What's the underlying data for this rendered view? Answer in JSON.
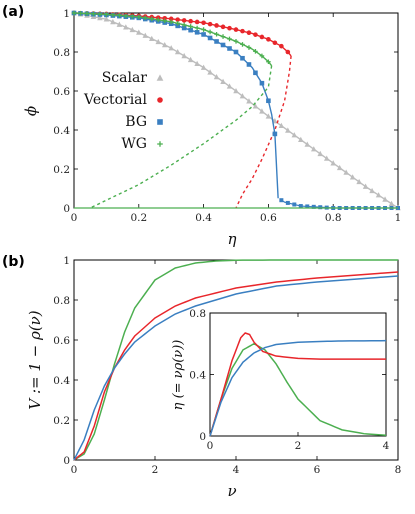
{
  "colors": {
    "scalar": "#bdbdbd",
    "vectorial": "#e8262b",
    "bg": "#3a7fc1",
    "wg": "#4caf50"
  },
  "chart_data": [
    {
      "panel": "(a)",
      "type": "line",
      "xlabel": "η",
      "ylabel": "ϕ",
      "xlim": [
        0,
        1
      ],
      "ylim": [
        0,
        1
      ],
      "xticks": [
        "0",
        "0.2",
        "0.4",
        "0.6",
        "0.8",
        "1"
      ],
      "yticks": [
        "0",
        "0.2",
        "0.4",
        "0.6",
        "0.8",
        "1"
      ],
      "legend_position": "center-left",
      "series": [
        {
          "name": "Scalar",
          "marker": "triangle",
          "x": [
            0.0,
            0.1,
            0.2,
            0.3,
            0.4,
            0.5,
            0.6,
            0.7,
            0.8,
            0.9,
            1.0
          ],
          "y": [
            1.0,
            0.968,
            0.9,
            0.82,
            0.72,
            0.6,
            0.47,
            0.35,
            0.23,
            0.11,
            0.0
          ]
        },
        {
          "name": "Vectorial",
          "marker": "circle",
          "x": [
            0.0,
            0.1,
            0.2,
            0.3,
            0.4,
            0.5,
            0.55,
            0.6,
            0.64,
            0.66,
            0.67
          ],
          "y": [
            1.0,
            0.995,
            0.985,
            0.97,
            0.95,
            0.915,
            0.895,
            0.865,
            0.83,
            0.8,
            0.78
          ],
          "unstable_x": [
            0.67,
            0.665,
            0.65,
            0.62,
            0.58,
            0.55,
            0.52,
            0.5
          ],
          "unstable_y": [
            0.78,
            0.7,
            0.55,
            0.4,
            0.25,
            0.15,
            0.07,
            0.0
          ]
        },
        {
          "name": "BG",
          "marker": "square",
          "x": [
            0.0,
            0.1,
            0.2,
            0.3,
            0.4,
            0.5,
            0.55,
            0.58,
            0.6,
            0.61,
            0.62,
            0.63
          ],
          "y": [
            1.0,
            0.99,
            0.975,
            0.945,
            0.89,
            0.8,
            0.72,
            0.64,
            0.55,
            0.48,
            0.38,
            0.05
          ],
          "x_zero": [
            0.64,
            0.65,
            0.7,
            0.8,
            0.9,
            1.0
          ],
          "y_zero": [
            0.04,
            0.03,
            0.01,
            0.0,
            0.0,
            0.0
          ]
        },
        {
          "name": "WG",
          "marker": "plus",
          "x": [
            0.0,
            0.1,
            0.2,
            0.3,
            0.4,
            0.5,
            0.55,
            0.58,
            0.6,
            0.61
          ],
          "y": [
            1.0,
            0.993,
            0.98,
            0.955,
            0.915,
            0.855,
            0.815,
            0.78,
            0.75,
            0.73
          ],
          "unstable_x": [
            0.61,
            0.6,
            0.55,
            0.5,
            0.4,
            0.3,
            0.2,
            0.1,
            0.05
          ],
          "unstable_y": [
            0.73,
            0.62,
            0.52,
            0.45,
            0.33,
            0.22,
            0.12,
            0.04,
            0.0
          ],
          "x_zero": [
            0.0,
            0.2,
            0.4,
            0.6,
            0.8,
            1.0
          ],
          "y_zero": [
            0.0,
            0.0,
            0.0,
            0.0,
            0.0,
            0.0
          ]
        }
      ]
    },
    {
      "panel": "(b)",
      "type": "line",
      "xlabel": "ν",
      "ylabel": "V := 1 − ρ(ν)",
      "xlim": [
        0,
        8
      ],
      "ylim": [
        0,
        1
      ],
      "xticks": [
        "0",
        "2",
        "4",
        "6",
        "8"
      ],
      "yticks": [
        "0",
        "0.2",
        "0.4",
        "0.6",
        "0.8",
        "1"
      ],
      "series": [
        {
          "color": "wg",
          "x": [
            0,
            0.25,
            0.5,
            0.75,
            1.0,
            1.25,
            1.5,
            2.0,
            2.5,
            3.0,
            3.5,
            4.0,
            5.0,
            8.0
          ],
          "y": [
            0,
            0.03,
            0.13,
            0.3,
            0.48,
            0.64,
            0.76,
            0.9,
            0.96,
            0.985,
            0.995,
            0.999,
            1.0,
            1.0
          ]
        },
        {
          "color": "vectorial",
          "x": [
            0,
            0.25,
            0.5,
            0.75,
            1.0,
            1.25,
            1.5,
            2.0,
            2.5,
            3.0,
            4.0,
            5.0,
            6.0,
            7.0,
            8.0
          ],
          "y": [
            0,
            0.04,
            0.17,
            0.34,
            0.46,
            0.55,
            0.62,
            0.71,
            0.77,
            0.81,
            0.86,
            0.89,
            0.91,
            0.925,
            0.94
          ]
        },
        {
          "color": "bg",
          "x": [
            0,
            0.25,
            0.5,
            0.75,
            1.0,
            1.25,
            1.5,
            2.0,
            2.5,
            3.0,
            4.0,
            5.0,
            6.0,
            7.0,
            8.0
          ],
          "y": [
            0,
            0.1,
            0.25,
            0.37,
            0.46,
            0.53,
            0.59,
            0.67,
            0.73,
            0.77,
            0.83,
            0.87,
            0.89,
            0.905,
            0.92
          ]
        }
      ]
    },
    {
      "panel": "inset",
      "type": "line",
      "xlabel": "",
      "ylabel": "η (= νρ(ν))",
      "xlim": [
        0,
        4
      ],
      "ylim": [
        0,
        0.8
      ],
      "xticks": [
        "0",
        "2",
        "4"
      ],
      "yticks": [
        "0",
        "0.4",
        "0.8"
      ],
      "series": [
        {
          "color": "wg",
          "x": [
            0,
            0.25,
            0.5,
            0.75,
            1.0,
            1.25,
            1.5,
            1.75,
            2.0,
            2.5,
            3.0,
            3.5,
            4.0
          ],
          "y": [
            0,
            0.24,
            0.44,
            0.56,
            0.6,
            0.56,
            0.47,
            0.35,
            0.24,
            0.1,
            0.04,
            0.015,
            0.005
          ]
        },
        {
          "color": "vectorial",
          "x": [
            0,
            0.25,
            0.5,
            0.7,
            0.8,
            0.9,
            1.0,
            1.2,
            1.5,
            2.0,
            2.5,
            3.0,
            4.0
          ],
          "y": [
            0,
            0.24,
            0.49,
            0.64,
            0.67,
            0.66,
            0.61,
            0.55,
            0.52,
            0.505,
            0.5,
            0.5,
            0.5
          ]
        },
        {
          "color": "bg",
          "x": [
            0,
            0.25,
            0.5,
            0.75,
            1.0,
            1.25,
            1.5,
            2.0,
            2.5,
            3.0,
            4.0
          ],
          "y": [
            0,
            0.22,
            0.38,
            0.48,
            0.54,
            0.575,
            0.595,
            0.61,
            0.615,
            0.618,
            0.62
          ]
        }
      ]
    }
  ]
}
